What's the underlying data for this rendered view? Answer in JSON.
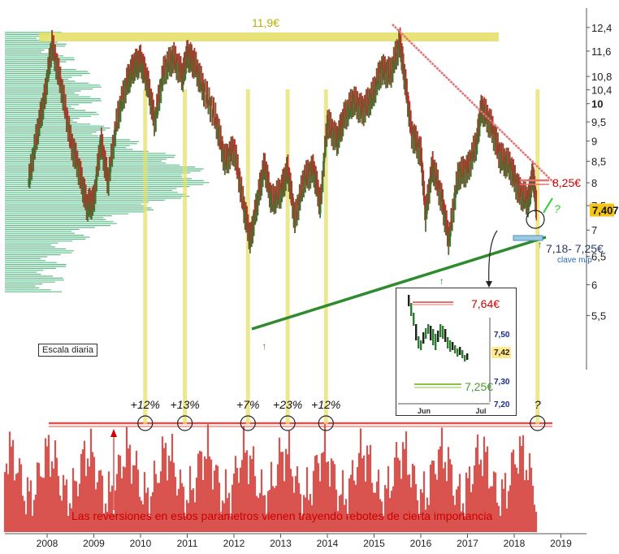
{
  "chart_data": {
    "type": "line",
    "title": "",
    "scale": "log",
    "ylim": [
      5.0,
      12.8
    ],
    "x_ticks": [
      "2008",
      "2009",
      "2010",
      "2011",
      "2012",
      "2013",
      "2014",
      "2015",
      "2016",
      "2017",
      "2018",
      "2019"
    ],
    "y_ticks": [
      "12,4",
      "11,6",
      "10,8",
      "10,4",
      "10",
      "9,5",
      "9",
      "8,5",
      "8",
      "7,5",
      "7",
      "6,5",
      "6",
      "5,5"
    ],
    "price_series": {
      "name": "",
      "x": [
        2007.6,
        2007.8,
        2007.95,
        2008.1,
        2008.3,
        2008.5,
        2008.7,
        2008.85,
        2009.0,
        2009.15,
        2009.3,
        2009.5,
        2009.7,
        2009.85,
        2010.0,
        2010.15,
        2010.3,
        2010.5,
        2010.7,
        2010.9,
        2011.0,
        2011.15,
        2011.35,
        2011.6,
        2011.8,
        2012.0,
        2012.2,
        2012.35,
        2012.5,
        2012.65,
        2012.8,
        2013.0,
        2013.15,
        2013.3,
        2013.5,
        2013.7,
        2013.85,
        2014.0,
        2014.2,
        2014.35,
        2014.55,
        2014.75,
        2014.95,
        2015.15,
        2015.35,
        2015.55,
        2015.65,
        2015.8,
        2016.0,
        2016.1,
        2016.25,
        2016.45,
        2016.6,
        2016.8,
        2017.0,
        2017.2,
        2017.3,
        2017.5,
        2017.7,
        2017.9,
        2018.1,
        2018.3,
        2018.4,
        2018.48
      ],
      "y": [
        8.0,
        9.3,
        10.2,
        11.8,
        10.5,
        9.0,
        8.2,
        7.5,
        7.6,
        9.0,
        8.0,
        9.6,
        10.6,
        11.1,
        11.3,
        10.6,
        9.5,
        11.0,
        11.4,
        10.8,
        11.5,
        11.2,
        10.4,
        9.6,
        8.5,
        8.8,
        7.5,
        6.8,
        7.6,
        8.4,
        7.6,
        7.8,
        8.3,
        7.2,
        8.1,
        8.3,
        7.5,
        9.5,
        9.0,
        9.6,
        10.1,
        9.8,
        10.2,
        11.0,
        10.9,
        11.9,
        10.8,
        9.2,
        8.7,
        7.3,
        8.4,
        7.6,
        6.8,
        8.2,
        8.3,
        9.0,
        9.9,
        9.4,
        8.6,
        8.4,
        7.8,
        7.6,
        8.2,
        7.407
      ]
    },
    "last_price_label": "7,407",
    "annotations": {
      "top_resistance": "11,9€",
      "resistance_right": "8,25€",
      "support_right": "7,18- 7,25€",
      "support_sub": "clave m/p",
      "question_green": "?",
      "scale_label": "Escala diaria",
      "rebounds": [
        "+12%",
        "+13%",
        "+7%",
        "+23%",
        "+12%",
        "?"
      ],
      "rebound_years": [
        2010.1,
        2010.95,
        2012.3,
        2013.15,
        2013.97,
        2018.5
      ],
      "oscillator_note": "Las reversiones en estos parámetros vienen trayendo rebotes de cierta importancia",
      "support_arrow_years": [
        2012.65,
        2016.45,
        2018.55
      ]
    },
    "inset": {
      "price_label": "7,64€",
      "support_label": "7,25€",
      "y_ticks": [
        "7,50",
        "7,42",
        "7,30",
        "7,20"
      ],
      "x_ticks": [
        "Jun",
        "Jul"
      ]
    },
    "colors": {
      "price_up": "#2e7d32",
      "price_down": "#c62828",
      "volume_profile": "#3cb371",
      "oscillator": "#d9534f",
      "highlight_band": "#e6e06a",
      "trendline": "#2e8b2e",
      "resistance_line": "#e57373",
      "text_red": "#cc0000",
      "text_blue": "#2b6cb0"
    }
  }
}
